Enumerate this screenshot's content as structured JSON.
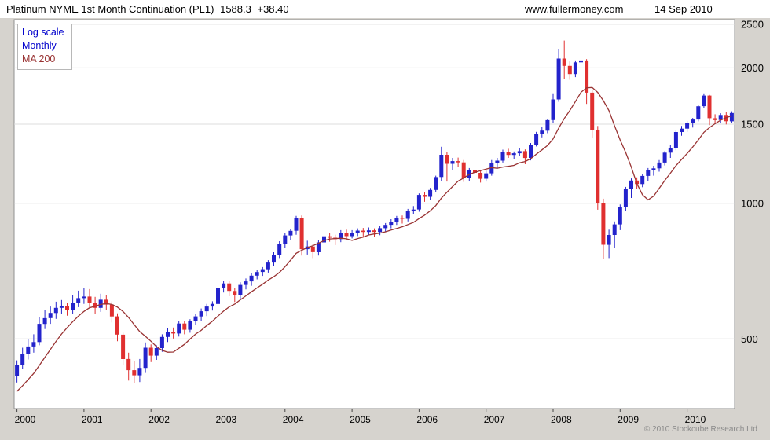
{
  "header": {
    "instrument": "Platinum NYME 1st Month Continuation (PL1)",
    "last_price": "1588.3",
    "change": "+38.40",
    "website": "www.fullermoney.com",
    "date": "14 Sep 2010"
  },
  "legend": {
    "scale": "Log scale",
    "interval": "Monthly",
    "ma": "MA 200"
  },
  "footer": {
    "copyright": "© 2010 Stockcube Research Ltd"
  },
  "chart_data": {
    "type": "candlestick",
    "title": "Platinum NYME 1st Month Continuation (PL1)",
    "subtitle": "Monthly, log scale, with 200-period moving average overlay",
    "last_price": 1588.3,
    "change": "+38.40",
    "scale": "log",
    "interval": "Monthly",
    "overlay": "MA 200",
    "start_month": "2000-01",
    "end_month": "2010-09",
    "x_ticks": [
      2000,
      2001,
      2002,
      2003,
      2004,
      2005,
      2006,
      2007,
      2008,
      2009,
      2010
    ],
    "y_ticks": [
      500,
      1000,
      1500,
      2000,
      2500
    ],
    "y_range": [
      350,
      2560
    ],
    "layout": {
      "legend_position": "top-left",
      "y_axis_side": "right",
      "grid": "horizontal-only"
    },
    "colors": {
      "up": "#2323cc",
      "down": "#e03030",
      "ma": "#993333",
      "grid": "#dcdcdc",
      "border": "#909090",
      "legend_blue": "#0000cc",
      "axis_text": "#000000"
    },
    "ma_window": 10,
    "ma_seed": [
      352,
      356,
      361,
      366,
      372,
      380,
      390,
      400,
      409
    ],
    "ohlc": [
      [
        414,
        448,
        400,
        438
      ],
      [
        438,
        478,
        428,
        462
      ],
      [
        462,
        500,
        450,
        481
      ],
      [
        481,
        512,
        466,
        492
      ],
      [
        492,
        560,
        484,
        540
      ],
      [
        540,
        580,
        526,
        556
      ],
      [
        556,
        590,
        540,
        571
      ],
      [
        571,
        605,
        554,
        586
      ],
      [
        586,
        610,
        568,
        592
      ],
      [
        592,
        600,
        563,
        580
      ],
      [
        580,
        625,
        568,
        601
      ],
      [
        601,
        640,
        588,
        616
      ],
      [
        616,
        650,
        598,
        621
      ],
      [
        621,
        645,
        584,
        601
      ],
      [
        601,
        620,
        569,
        586
      ],
      [
        586,
        630,
        574,
        611
      ],
      [
        611,
        625,
        579,
        596
      ],
      [
        596,
        606,
        544,
        561
      ],
      [
        561,
        570,
        494,
        511
      ],
      [
        511,
        516,
        438,
        451
      ],
      [
        451,
        466,
        404,
        426
      ],
      [
        426,
        446,
        398,
        415
      ],
      [
        415,
        451,
        401,
        431
      ],
      [
        431,
        491,
        420,
        478
      ],
      [
        478,
        486,
        444,
        459
      ],
      [
        459,
        484,
        449,
        477
      ],
      [
        477,
        512,
        468,
        505
      ],
      [
        505,
        528,
        492,
        519
      ],
      [
        519,
        530,
        501,
        514
      ],
      [
        514,
        548,
        506,
        541
      ],
      [
        541,
        549,
        512,
        524
      ],
      [
        524,
        553,
        516,
        547
      ],
      [
        547,
        569,
        536,
        561
      ],
      [
        561,
        584,
        549,
        576
      ],
      [
        576,
        598,
        562,
        590
      ],
      [
        590,
        606,
        578,
        598
      ],
      [
        598,
        658,
        590,
        649
      ],
      [
        649,
        674,
        634,
        664
      ],
      [
        664,
        672,
        622,
        639
      ],
      [
        639,
        649,
        604,
        625
      ],
      [
        625,
        668,
        614,
        659
      ],
      [
        659,
        681,
        644,
        671
      ],
      [
        671,
        699,
        656,
        691
      ],
      [
        691,
        712,
        678,
        704
      ],
      [
        704,
        722,
        690,
        714
      ],
      [
        714,
        748,
        702,
        739
      ],
      [
        739,
        779,
        726,
        769
      ],
      [
        769,
        824,
        756,
        814
      ],
      [
        814,
        858,
        798,
        849
      ],
      [
        849,
        878,
        830,
        869
      ],
      [
        869,
        938,
        852,
        928
      ],
      [
        928,
        940,
        766,
        791
      ],
      [
        791,
        826,
        770,
        802
      ],
      [
        802,
        812,
        756,
        779
      ],
      [
        779,
        828,
        766,
        819
      ],
      [
        819,
        856,
        804,
        845
      ],
      [
        845,
        860,
        822,
        839
      ],
      [
        839,
        852,
        808,
        833
      ],
      [
        833,
        872,
        820,
        861
      ],
      [
        861,
        874,
        828,
        846
      ],
      [
        846,
        872,
        836,
        861
      ],
      [
        861,
        880,
        846,
        870
      ],
      [
        870,
        882,
        844,
        864
      ],
      [
        864,
        884,
        852,
        871
      ],
      [
        871,
        880,
        842,
        864
      ],
      [
        864,
        892,
        850,
        881
      ],
      [
        881,
        904,
        866,
        896
      ],
      [
        896,
        922,
        880,
        911
      ],
      [
        911,
        938,
        896,
        929
      ],
      [
        929,
        940,
        902,
        924
      ],
      [
        924,
        972,
        912,
        964
      ],
      [
        964,
        986,
        946,
        969
      ],
      [
        969,
        1052,
        958,
        1044
      ],
      [
        1044,
        1060,
        1008,
        1034
      ],
      [
        1034,
        1082,
        1018,
        1071
      ],
      [
        1071,
        1152,
        1058,
        1144
      ],
      [
        1144,
        1336,
        1122,
        1282
      ],
      [
        1282,
        1302,
        1118,
        1224
      ],
      [
        1224,
        1262,
        1184,
        1241
      ],
      [
        1241,
        1264,
        1204,
        1233
      ],
      [
        1233,
        1248,
        1116,
        1141
      ],
      [
        1141,
        1198,
        1122,
        1184
      ],
      [
        1184,
        1204,
        1146,
        1169
      ],
      [
        1169,
        1186,
        1112,
        1134
      ],
      [
        1134,
        1182,
        1118,
        1166
      ],
      [
        1166,
        1248,
        1152,
        1231
      ],
      [
        1231,
        1262,
        1198,
        1244
      ],
      [
        1244,
        1316,
        1232,
        1302
      ],
      [
        1302,
        1322,
        1262,
        1281
      ],
      [
        1281,
        1304,
        1252,
        1292
      ],
      [
        1292,
        1324,
        1272,
        1306
      ],
      [
        1306,
        1318,
        1222,
        1261
      ],
      [
        1261,
        1362,
        1246,
        1351
      ],
      [
        1351,
        1442,
        1338,
        1429
      ],
      [
        1429,
        1478,
        1402,
        1451
      ],
      [
        1451,
        1542,
        1432,
        1531
      ],
      [
        1531,
        1756,
        1512,
        1702
      ],
      [
        1702,
        2202,
        1682,
        2098
      ],
      [
        2098,
        2300,
        1894,
        2021
      ],
      [
        2021,
        2068,
        1882,
        1938
      ],
      [
        1938,
        2078,
        1908,
        2058
      ],
      [
        2058,
        2096,
        1992,
        2078
      ],
      [
        2078,
        2092,
        1664,
        1762
      ],
      [
        1762,
        1782,
        1396,
        1456
      ],
      [
        1456,
        1486,
        968,
        1002
      ],
      [
        1002,
        1024,
        752,
        809
      ],
      [
        809,
        874,
        756,
        851
      ],
      [
        851,
        912,
        798,
        898
      ],
      [
        898,
        994,
        872,
        982
      ],
      [
        982,
        1088,
        962,
        1075
      ],
      [
        1075,
        1136,
        1028,
        1124
      ],
      [
        1124,
        1142,
        1078,
        1104
      ],
      [
        1104,
        1162,
        1086,
        1151
      ],
      [
        1151,
        1198,
        1122,
        1186
      ],
      [
        1186,
        1212,
        1152,
        1196
      ],
      [
        1196,
        1248,
        1176,
        1232
      ],
      [
        1232,
        1306,
        1214,
        1296
      ],
      [
        1296,
        1348,
        1262,
        1326
      ],
      [
        1326,
        1452,
        1312,
        1441
      ],
      [
        1441,
        1486,
        1414,
        1466
      ],
      [
        1466,
        1524,
        1442,
        1512
      ],
      [
        1512,
        1548,
        1474,
        1536
      ],
      [
        1536,
        1654,
        1522,
        1644
      ],
      [
        1644,
        1756,
        1628,
        1736
      ],
      [
        1736,
        1742,
        1492,
        1546
      ],
      [
        1546,
        1578,
        1502,
        1532
      ],
      [
        1532,
        1586,
        1508,
        1572
      ],
      [
        1572,
        1594,
        1498,
        1522
      ],
      [
        1522,
        1602,
        1508,
        1588
      ]
    ]
  }
}
